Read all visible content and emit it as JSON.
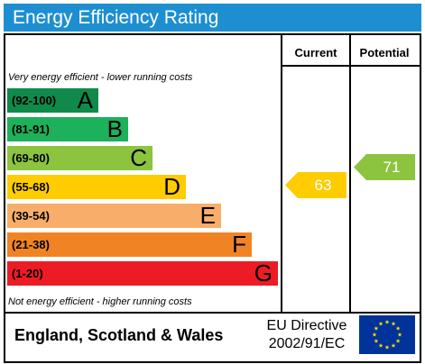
{
  "title": "Energy Efficiency Rating",
  "columns": {
    "current": "Current",
    "potential": "Potential"
  },
  "captions": {
    "top": "Very energy efficient - lower running costs",
    "bottom": "Not energy efficient - higher running costs"
  },
  "bands": [
    {
      "range": "(92-100)",
      "letter": "A",
      "color": "#0f8a4a"
    },
    {
      "range": "(81-91)",
      "letter": "B",
      "color": "#1cb15a"
    },
    {
      "range": "(69-80)",
      "letter": "C",
      "color": "#8cc43f"
    },
    {
      "range": "(55-68)",
      "letter": "D",
      "color": "#ffcc00"
    },
    {
      "range": "(39-54)",
      "letter": "E",
      "color": "#f8ae6a"
    },
    {
      "range": "(21-38)",
      "letter": "F",
      "color": "#f08424"
    },
    {
      "range": "(1-20)",
      "letter": "G",
      "color": "#ed1c24"
    }
  ],
  "current": {
    "value": "63",
    "band": "D",
    "color": "#ffcc00"
  },
  "potential": {
    "value": "71",
    "band": "C",
    "color": "#8cc43f"
  },
  "footer": {
    "country": "England, Scotland & Wales",
    "directive_line1": "EU Directive",
    "directive_line2": "2002/91/EC"
  },
  "colors": {
    "title_bar": "#1d8fd1",
    "eu_flag": "#003399",
    "eu_star": "#ffdd00"
  },
  "icons": {
    "flag": "eu-flag-icon"
  }
}
